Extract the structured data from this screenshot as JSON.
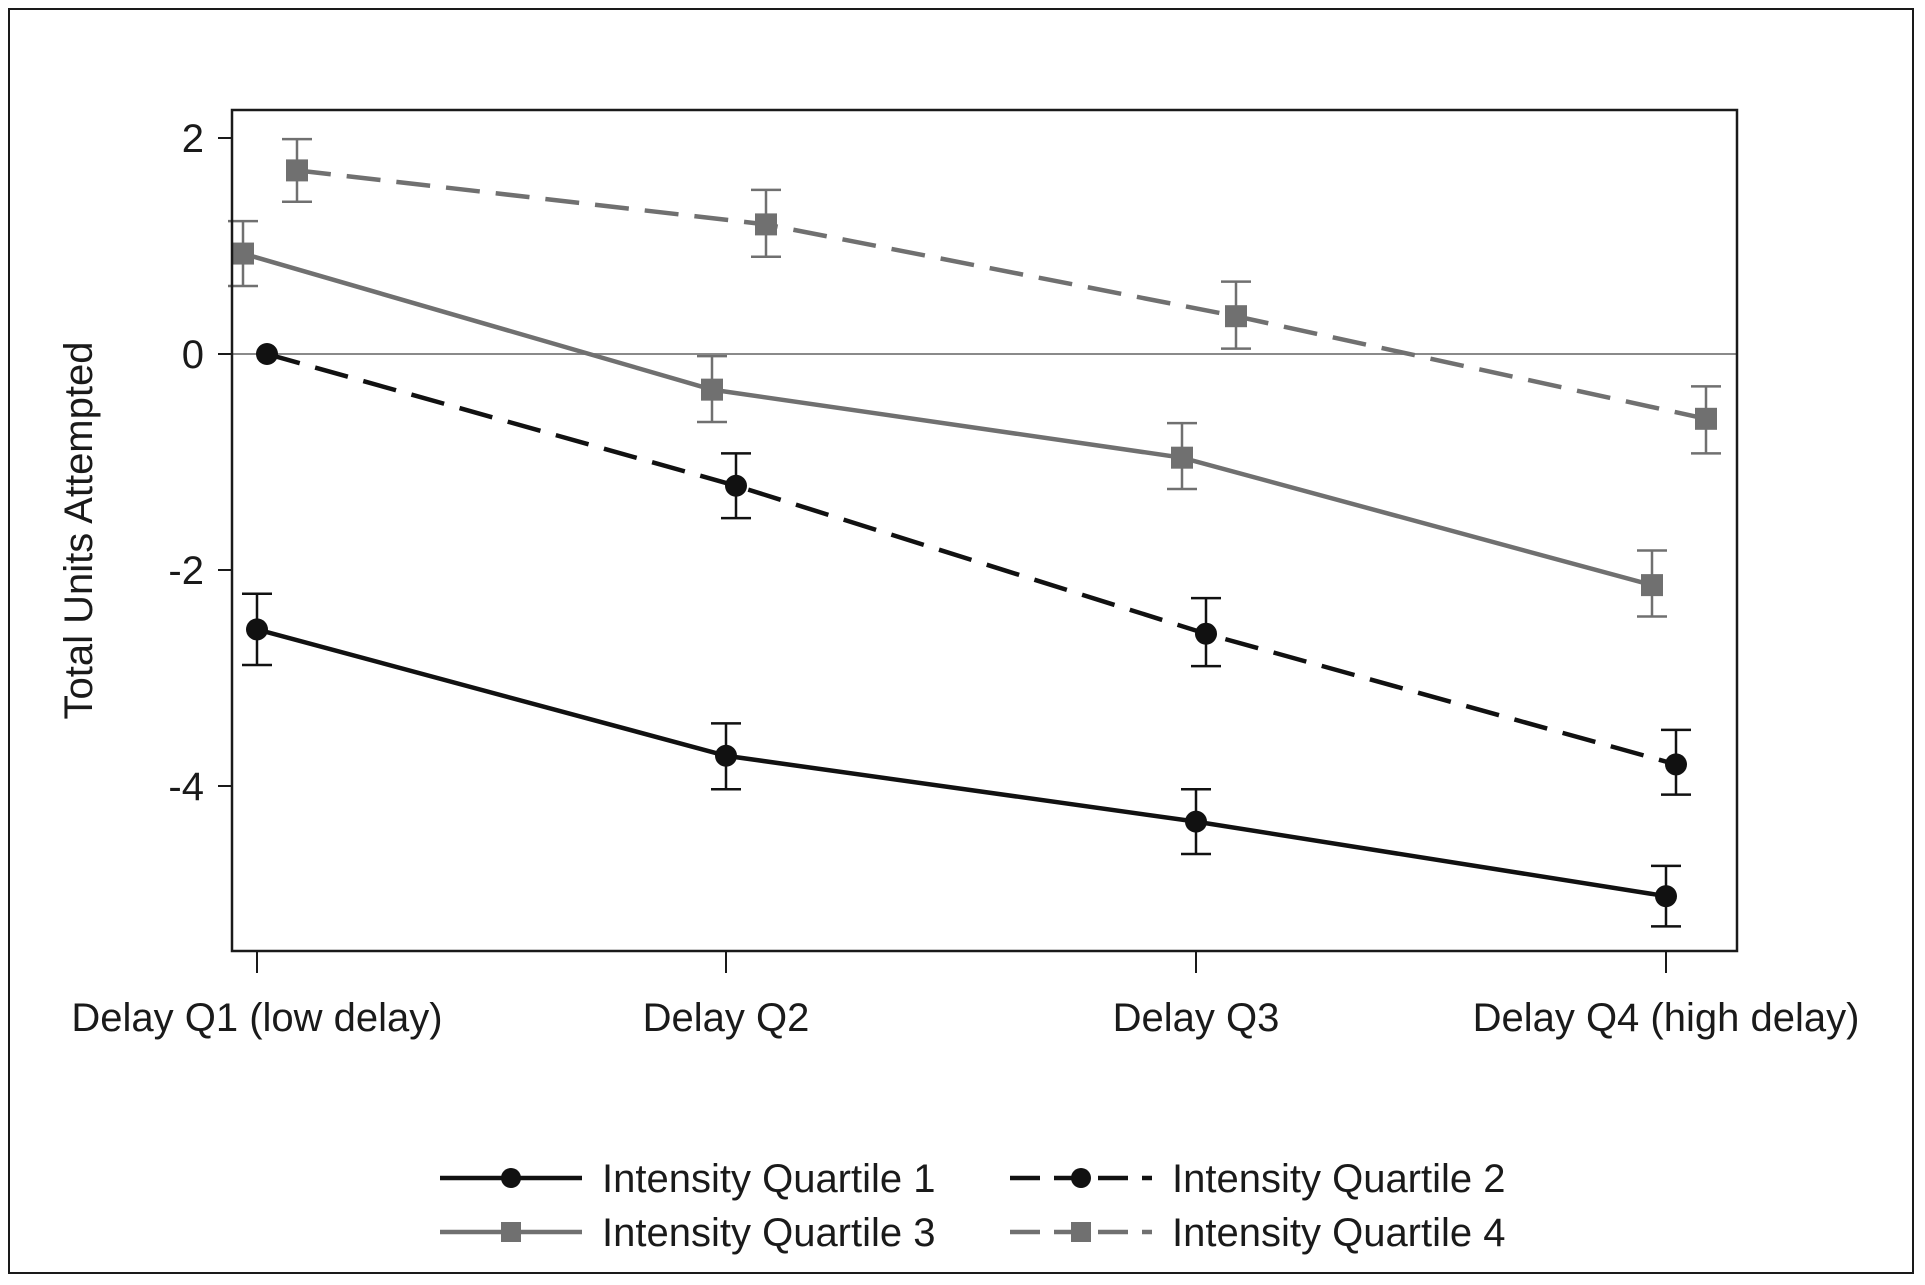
{
  "chart_data": {
    "type": "line",
    "title": "",
    "xlabel": "",
    "ylabel": "Total Units Attempted",
    "categories": [
      "Delay Q1 (low delay)",
      "Delay Q2",
      "Delay Q3",
      "Delay Q4 (high delay)"
    ],
    "ylim": [
      -5.5,
      2.2
    ],
    "yticks": [
      -4,
      -2,
      0,
      2
    ],
    "ytick_labels": [
      "-4",
      "-2",
      "0",
      "2"
    ],
    "reference_line_y": 0,
    "grid": false,
    "legend_position": "bottom",
    "series": [
      {
        "name": "Intensity Quartile 1",
        "values": [
          -2.55,
          -3.72,
          -4.33,
          -5.02
        ],
        "error_low": [
          -2.88,
          -4.03,
          -4.63,
          -5.3
        ],
        "error_high": [
          -2.22,
          -3.42,
          -4.03,
          -4.74
        ],
        "line_style": "solid",
        "marker": "circle",
        "color": "#111111"
      },
      {
        "name": "Intensity Quartile 2",
        "values": [
          0.0,
          -1.22,
          -2.59,
          -3.8
        ],
        "error_low": null,
        "error_high": null,
        "error_low_values": [
          null,
          -1.52,
          -2.89,
          -4.08
        ],
        "error_high_values": [
          null,
          -0.92,
          -2.26,
          -3.48
        ],
        "line_style": "dashed",
        "marker": "circle",
        "color": "#111111"
      },
      {
        "name": "Intensity Quartile 3",
        "values": [
          0.93,
          -0.33,
          -0.96,
          -2.14
        ],
        "error_low": [
          0.63,
          -0.63,
          -1.25,
          -2.43
        ],
        "error_high": [
          1.23,
          -0.02,
          -0.64,
          -1.82
        ],
        "line_style": "solid",
        "marker": "square",
        "color": "#707070"
      },
      {
        "name": "Intensity Quartile 4",
        "values": [
          1.7,
          1.2,
          0.35,
          -0.6
        ],
        "error_low": [
          1.41,
          0.9,
          0.05,
          -0.92
        ],
        "error_high": [
          1.99,
          1.52,
          0.67,
          -0.3
        ],
        "line_style": "dashed",
        "marker": "square",
        "color": "#707070"
      }
    ]
  }
}
